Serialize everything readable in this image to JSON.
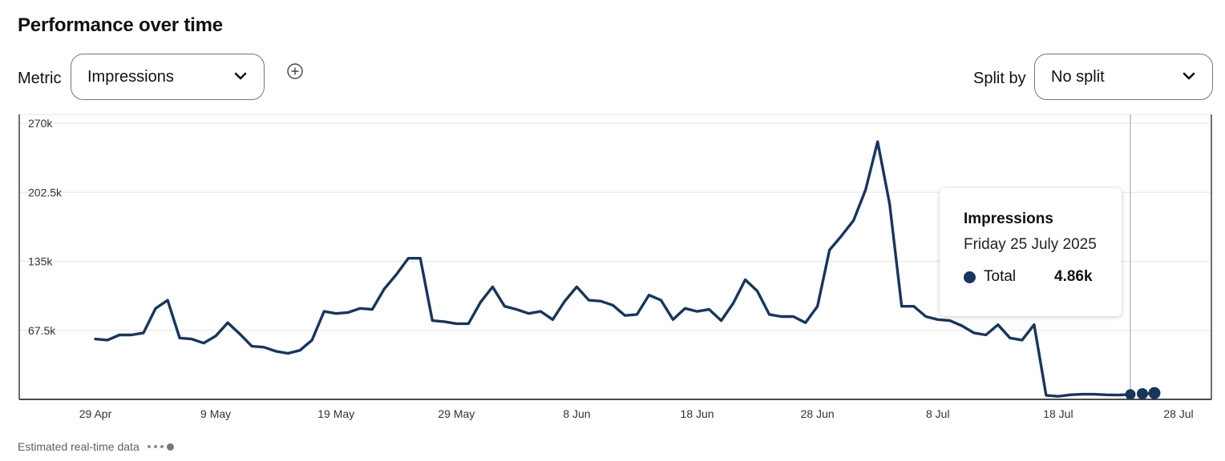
{
  "header": {
    "title": "Performance over time"
  },
  "controls": {
    "metric_label": "Metric",
    "metric_value": "Impressions",
    "split_label": "Split by",
    "split_value": "No split"
  },
  "tooltip": {
    "metric": "Impressions",
    "date": "Friday 25 July 2025",
    "series_name": "Total",
    "value": "4.86k"
  },
  "footer": {
    "estimated_label": "Estimated real-time data"
  },
  "colors": {
    "series": "#17365d",
    "grid": "#e6e6e6",
    "axis": "#111111"
  },
  "chart_data": {
    "type": "line",
    "title": "",
    "xlabel": "",
    "ylabel": "",
    "ylim": [
      0,
      270000
    ],
    "y_ticks": [
      "67.5k",
      "135k",
      "202.5k",
      "270k"
    ],
    "y_tick_values": [
      67500,
      135000,
      202500,
      270000
    ],
    "x_ticks": [
      "29 Apr",
      "9 May",
      "19 May",
      "29 May",
      "8 Jun",
      "18 Jun",
      "28 Jun",
      "8 Jul",
      "18 Jul",
      "28 Jul"
    ],
    "x_range": [
      "2025-04-29",
      "2025-07-28"
    ],
    "grid": true,
    "series": [
      {
        "name": "Total",
        "values": [
          [
            0,
            59000
          ],
          [
            1,
            58000
          ],
          [
            2,
            63000
          ],
          [
            3,
            63000
          ],
          [
            4,
            65000
          ],
          [
            5,
            89000
          ],
          [
            6,
            97000
          ],
          [
            7,
            60000
          ],
          [
            8,
            59000
          ],
          [
            9,
            55000
          ],
          [
            10,
            62000
          ],
          [
            11,
            75000
          ],
          [
            12,
            64000
          ],
          [
            13,
            52000
          ],
          [
            14,
            51000
          ],
          [
            15,
            47000
          ],
          [
            16,
            45000
          ],
          [
            17,
            48000
          ],
          [
            18,
            58000
          ],
          [
            19,
            86000
          ],
          [
            20,
            84000
          ],
          [
            21,
            85000
          ],
          [
            22,
            89000
          ],
          [
            23,
            88000
          ],
          [
            24,
            108000
          ],
          [
            25,
            122000
          ],
          [
            26,
            138000
          ],
          [
            27,
            138000
          ],
          [
            28,
            77000
          ],
          [
            29,
            76000
          ],
          [
            30,
            74000
          ],
          [
            31,
            74000
          ],
          [
            32,
            95000
          ],
          [
            33,
            110000
          ],
          [
            34,
            91000
          ],
          [
            35,
            88000
          ],
          [
            36,
            84000
          ],
          [
            37,
            86000
          ],
          [
            38,
            78000
          ],
          [
            39,
            96000
          ],
          [
            40,
            110000
          ],
          [
            41,
            97000
          ],
          [
            42,
            96000
          ],
          [
            43,
            92000
          ],
          [
            44,
            82000
          ],
          [
            45,
            83000
          ],
          [
            46,
            102000
          ],
          [
            47,
            97000
          ],
          [
            48,
            78000
          ],
          [
            49,
            89000
          ],
          [
            50,
            86000
          ],
          [
            51,
            88000
          ],
          [
            52,
            77000
          ],
          [
            53,
            94000
          ],
          [
            54,
            117000
          ],
          [
            55,
            106000
          ],
          [
            56,
            83000
          ],
          [
            57,
            81000
          ],
          [
            58,
            81000
          ],
          [
            59,
            75000
          ],
          [
            60,
            91000
          ],
          [
            61,
            146000
          ],
          [
            62,
            160000
          ],
          [
            63,
            175000
          ],
          [
            64,
            205000
          ],
          [
            65,
            252000
          ],
          [
            66,
            191000
          ],
          [
            67,
            91000
          ],
          [
            68,
            91000
          ],
          [
            69,
            81000
          ],
          [
            70,
            78000
          ],
          [
            71,
            77000
          ],
          [
            72,
            72000
          ],
          [
            73,
            65000
          ],
          [
            74,
            63000
          ],
          [
            75,
            73000
          ],
          [
            76,
            60000
          ],
          [
            77,
            58000
          ],
          [
            78,
            73000
          ],
          [
            79,
            4000
          ],
          [
            80,
            3000
          ],
          [
            81,
            4500
          ],
          [
            82,
            5000
          ],
          [
            83,
            5000
          ],
          [
            84,
            4500
          ],
          [
            85,
            4200
          ],
          [
            86,
            4860
          ]
        ]
      },
      {
        "name": "Estimated real-time data",
        "values": [
          [
            86,
            4860
          ],
          [
            87,
            5500
          ],
          [
            88,
            6200
          ]
        ]
      }
    ]
  }
}
